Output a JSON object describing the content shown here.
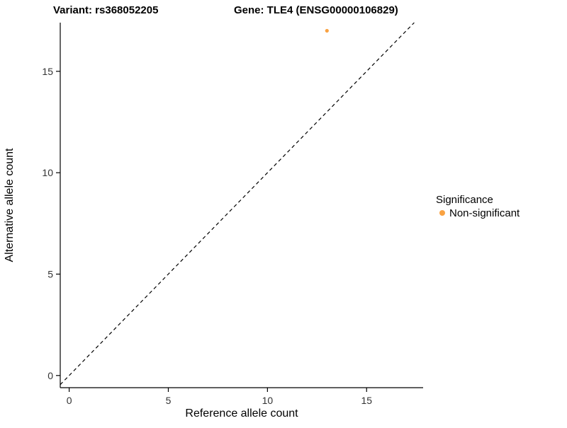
{
  "figure": {
    "background": "#ffffff"
  },
  "chart_data": {
    "type": "scatter",
    "title_left": "Variant: rs368052205",
    "title_right": "Gene: TLE4 (ENSG00000106829)",
    "xlabel": "Reference allele count",
    "ylabel": "Alternative allele count",
    "xlim": [
      -0.45,
      17.85
    ],
    "ylim": [
      -0.6,
      17.4
    ],
    "xticks": [
      0,
      5,
      10,
      15
    ],
    "yticks": [
      0,
      5,
      10,
      15
    ],
    "grid": false,
    "points": [
      {
        "x": 13,
        "y": 17,
        "series": "Non-significant"
      }
    ],
    "identity_line": {
      "style": "dashed",
      "from": [
        -0.45,
        -0.45
      ],
      "to": [
        17.4,
        17.4
      ],
      "color": "#000000"
    },
    "colors": {
      "non_significant": "#F9A242",
      "axis": "#000000",
      "tick_text": "#333333"
    },
    "legend": {
      "position": "right",
      "title": "Significance",
      "entries": [
        {
          "label": "Non-significant",
          "color": "#F9A242"
        }
      ]
    }
  }
}
